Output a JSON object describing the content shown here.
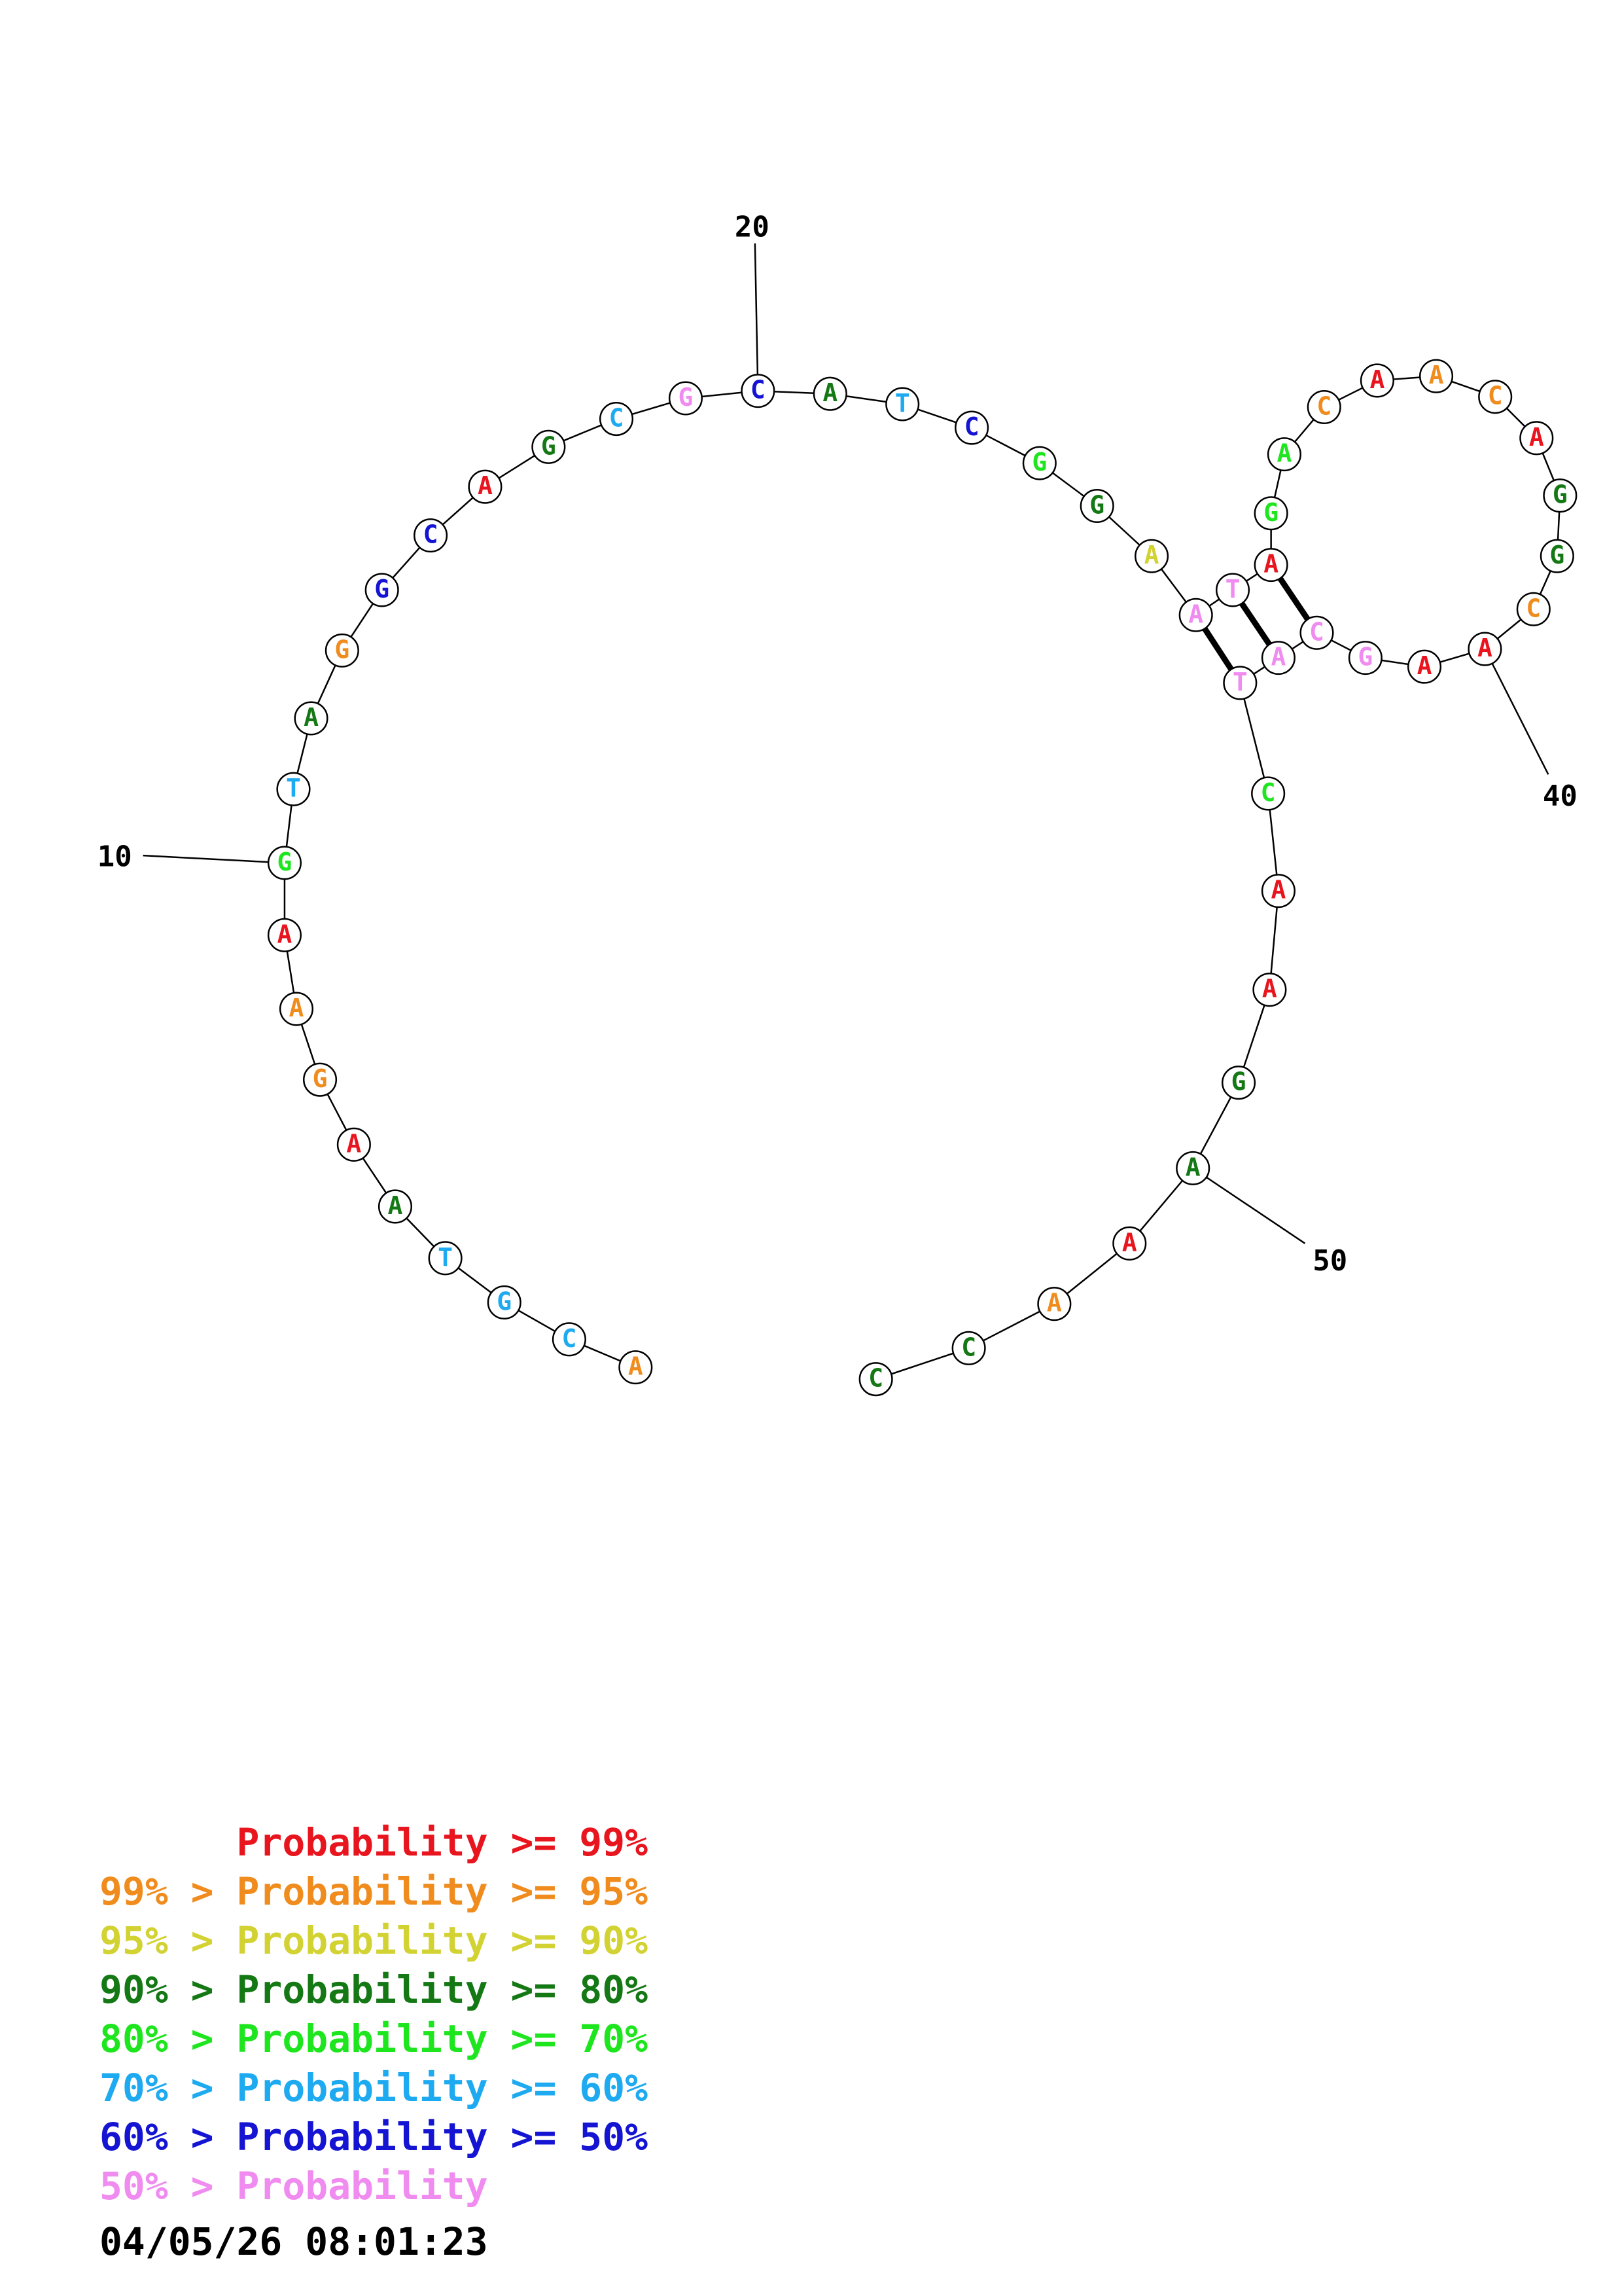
{
  "sequence": [
    {
      "base": "A",
      "prob": "95-99"
    },
    {
      "base": "C",
      "prob": "60-70"
    },
    {
      "base": "G",
      "prob": "60-70"
    },
    {
      "base": "T",
      "prob": "60-70"
    },
    {
      "base": "A",
      "prob": "80-90"
    },
    {
      "base": "A",
      "prob": ">=99"
    },
    {
      "base": "G",
      "prob": "95-99"
    },
    {
      "base": "A",
      "prob": "95-99"
    },
    {
      "base": "A",
      "prob": ">=99"
    },
    {
      "base": "G",
      "prob": "70-80"
    },
    {
      "base": "T",
      "prob": "60-70"
    },
    {
      "base": "A",
      "prob": "80-90"
    },
    {
      "base": "G",
      "prob": "95-99"
    },
    {
      "base": "G",
      "prob": "50-60"
    },
    {
      "base": "C",
      "prob": "50-60"
    },
    {
      "base": "A",
      "prob": ">=99"
    },
    {
      "base": "G",
      "prob": "80-90"
    },
    {
      "base": "C",
      "prob": "60-70"
    },
    {
      "base": "G",
      "prob": "<50"
    },
    {
      "base": "C",
      "prob": "50-60"
    },
    {
      "base": "A",
      "prob": "80-90"
    },
    {
      "base": "T",
      "prob": "60-70"
    },
    {
      "base": "C",
      "prob": "50-60"
    },
    {
      "base": "G",
      "prob": "70-80"
    },
    {
      "base": "G",
      "prob": "80-90"
    },
    {
      "base": "A",
      "prob": "90-95"
    },
    {
      "base": "A",
      "prob": "<50"
    },
    {
      "base": "T",
      "prob": "<50"
    },
    {
      "base": "A",
      "prob": ">=99"
    },
    {
      "base": "G",
      "prob": "70-80"
    },
    {
      "base": "A",
      "prob": "70-80"
    },
    {
      "base": "C",
      "prob": "95-99"
    },
    {
      "base": "A",
      "prob": ">=99"
    },
    {
      "base": "A",
      "prob": "95-99"
    },
    {
      "base": "C",
      "prob": "95-99"
    },
    {
      "base": "A",
      "prob": ">=99"
    },
    {
      "base": "G",
      "prob": "80-90"
    },
    {
      "base": "G",
      "prob": "80-90"
    },
    {
      "base": "C",
      "prob": "95-99"
    },
    {
      "base": "A",
      "prob": ">=99"
    },
    {
      "base": "A",
      "prob": ">=99"
    },
    {
      "base": "G",
      "prob": "<50"
    },
    {
      "base": "C",
      "prob": "<50"
    },
    {
      "base": "A",
      "prob": "<50"
    },
    {
      "base": "T",
      "prob": "<50"
    },
    {
      "base": "C",
      "prob": "70-80"
    },
    {
      "base": "A",
      "prob": ">=99"
    },
    {
      "base": "A",
      "prob": ">=99"
    },
    {
      "base": "G",
      "prob": "80-90"
    },
    {
      "base": "A",
      "prob": "80-90"
    },
    {
      "base": "A",
      "prob": ">=99"
    },
    {
      "base": "A",
      "prob": "95-99"
    },
    {
      "base": "C",
      "prob": "80-90"
    },
    {
      "base": "C",
      "prob": "80-90"
    }
  ],
  "base_pairs": [
    [
      27,
      45
    ],
    [
      28,
      44
    ],
    [
      29,
      43
    ]
  ],
  "position_labels": [
    {
      "pos": 10,
      "text": "10"
    },
    {
      "pos": 20,
      "text": "20"
    },
    {
      "pos": 40,
      "text": "40"
    },
    {
      "pos": 50,
      "text": "50"
    }
  ],
  "legend": [
    {
      "prefix": "    ",
      "label": "Probability >= 99%",
      "color": "#e8141e"
    },
    {
      "prefix": "99% > ",
      "label": "Probability >= 95%",
      "color": "#f08c1e"
    },
    {
      "prefix": "95% > ",
      "label": "Probability >= 90%",
      "color": "#d2d232"
    },
    {
      "prefix": "90% > ",
      "label": "Probability >= 80%",
      "color": "#147814"
    },
    {
      "prefix": "80% > ",
      "label": "Probability >= 70%",
      "color": "#1ee61e"
    },
    {
      "prefix": "70% > ",
      "label": "Probability >= 60%",
      "color": "#1eaaf0"
    },
    {
      "prefix": "60% > ",
      "label": "Probability >= 50%",
      "color": "#1414d2"
    },
    {
      "prefix": "50% > ",
      "label": "Probability",
      "color": "#f08cf0"
    }
  ],
  "prob_colors": {
    ">=99": "#e8141e",
    "95-99": "#f08c1e",
    "90-95": "#d2d232",
    "80-90": "#147814",
    "70-80": "#1ee61e",
    "60-70": "#1eaaf0",
    "50-60": "#1414d2",
    "<50": "#f08cf0"
  },
  "timestamp": "04/05/26 08:01:23"
}
